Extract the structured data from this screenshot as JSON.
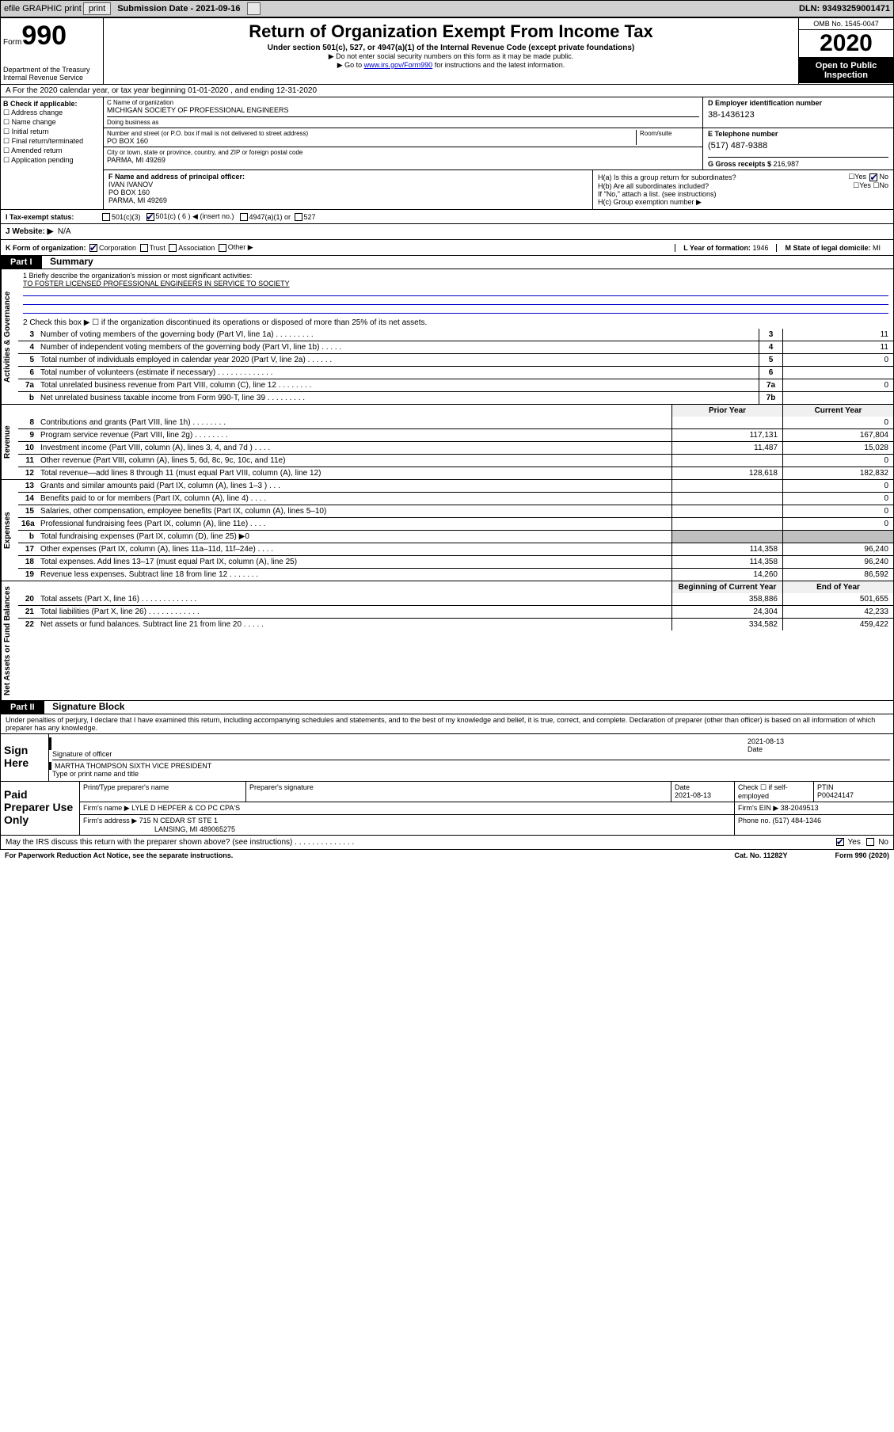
{
  "top": {
    "efile": "efile GRAPHIC print",
    "sub_date_label": "Submission Date - 2021-09-16",
    "dln": "DLN: 93493259001471"
  },
  "header": {
    "form_label": "Form",
    "form_num": "990",
    "dept": "Department of the Treasury\nInternal Revenue Service",
    "title": "Return of Organization Exempt From Income Tax",
    "subtitle": "Under section 501(c), 527, or 4947(a)(1) of the Internal Revenue Code (except private foundations)",
    "note1": "▶ Do not enter social security numbers on this form as it may be made public.",
    "note2_pre": "▶ Go to ",
    "note2_link": "www.irs.gov/Form990",
    "note2_post": " for instructions and the latest information.",
    "omb": "OMB No. 1545-0047",
    "year": "2020",
    "open": "Open to Public Inspection"
  },
  "row_a": "A For the 2020 calendar year, or tax year beginning 01-01-2020   , and ending 12-31-2020",
  "col_b": {
    "label": "B Check if applicable:",
    "items": [
      "Address change",
      "Name change",
      "Initial return",
      "Final return/terminated",
      "Amended return",
      "Application pending"
    ]
  },
  "col_c": {
    "name_label": "C Name of organization",
    "name": "MICHIGAN SOCIETY OF PROFESSIONAL ENGINEERS",
    "dba_label": "Doing business as",
    "street_label": "Number and street (or P.O. box if mail is not delivered to street address)",
    "room_label": "Room/suite",
    "street": "PO BOX 160",
    "city_label": "City or town, state or province, country, and ZIP or foreign postal code",
    "city": "PARMA, MI  49269"
  },
  "col_d": {
    "ein_label": "D Employer identification number",
    "ein": "38-1436123",
    "phone_label": "E Telephone number",
    "phone": "(517) 487-9388",
    "gross_label": "G Gross receipts $ ",
    "gross": "216,987"
  },
  "col_f": {
    "label": "F  Name and address of principal officer:",
    "name": "IVAN IVANOV",
    "addr1": "PO BOX 160",
    "addr2": "PARMA, MI  49269"
  },
  "col_h": {
    "ha_label": "H(a)  Is this a group return for subordinates?",
    "hb_label": "H(b)  Are all subordinates included?",
    "hb_note": "If \"No,\" attach a list. (see instructions)",
    "hc_label": "H(c)  Group exemption number ▶"
  },
  "row_i": {
    "label": "I    Tax-exempt status:",
    "opt1": "501(c)(3)",
    "opt2": "501(c) ( 6 ) ◀ (insert no.)",
    "opt3": "4947(a)(1) or",
    "opt4": "527"
  },
  "row_j": {
    "label": "J   Website: ▶",
    "val": "N/A"
  },
  "row_k": {
    "label": "K Form of organization:",
    "opts": [
      "Corporation",
      "Trust",
      "Association",
      "Other ▶"
    ],
    "l_label": "L Year of formation: ",
    "l_val": "1946",
    "m_label": "M State of legal domicile: ",
    "m_val": "MI"
  },
  "part1": {
    "hdr": "Part I",
    "title": "Summary",
    "line1_label": "1   Briefly describe the organization's mission or most significant activities:",
    "mission": "TO FOSTER LICENSED PROFESSIONAL ENGINEERS IN SERVICE TO SOCIETY",
    "line2": "2    Check this box ▶ ☐  if the organization discontinued its operations or disposed of more than 25% of its net assets.",
    "vtab_gov": "Activities & Governance",
    "vtab_rev": "Revenue",
    "vtab_exp": "Expenses",
    "vtab_net": "Net Assets or Fund Balances",
    "lines_gov": [
      {
        "n": "3",
        "t": "Number of voting members of the governing body (Part VI, line 1a)   .   .   .   .   .   .   .   .   .",
        "box": "3",
        "v": "11"
      },
      {
        "n": "4",
        "t": "Number of independent voting members of the governing body (Part VI, line 1b)   .   .   .   .   .",
        "box": "4",
        "v": "11"
      },
      {
        "n": "5",
        "t": "Total number of individuals employed in calendar year 2020 (Part V, line 2a)   .   .   .   .   .   .",
        "box": "5",
        "v": "0"
      },
      {
        "n": "6",
        "t": "Total number of volunteers (estimate if necessary)   .   .   .   .   .   .   .   .   .   .   .   .   .",
        "box": "6",
        "v": ""
      },
      {
        "n": "7a",
        "t": "Total unrelated business revenue from Part VIII, column (C), line 12   .   .   .   .   .   .   .   .",
        "box": "7a",
        "v": "0"
      },
      {
        "n": "b",
        "t": "Net unrelated business taxable income from Form 990-T, line 39   .   .   .   .   .   .   .   .   .",
        "box": "7b",
        "v": ""
      }
    ],
    "hdr_prior": "Prior Year",
    "hdr_curr": "Current Year",
    "lines_rev": [
      {
        "n": "8",
        "t": "Contributions and grants (Part VIII, line 1h)   .   .   .   .   .   .   .   .",
        "p": "",
        "c": "0"
      },
      {
        "n": "9",
        "t": "Program service revenue (Part VIII, line 2g)   .   .   .   .   .   .   .   .",
        "p": "117,131",
        "c": "167,804"
      },
      {
        "n": "10",
        "t": "Investment income (Part VIII, column (A), lines 3, 4, and 7d )   .   .   .   .",
        "p": "11,487",
        "c": "15,028"
      },
      {
        "n": "11",
        "t": "Other revenue (Part VIII, column (A), lines 5, 6d, 8c, 9c, 10c, and 11e)",
        "p": "",
        "c": "0"
      },
      {
        "n": "12",
        "t": "Total revenue—add lines 8 through 11 (must equal Part VIII, column (A), line 12)",
        "p": "128,618",
        "c": "182,832"
      }
    ],
    "lines_exp": [
      {
        "n": "13",
        "t": "Grants and similar amounts paid (Part IX, column (A), lines 1–3 )   .   .   .",
        "p": "",
        "c": "0"
      },
      {
        "n": "14",
        "t": "Benefits paid to or for members (Part IX, column (A), line 4)   .   .   .   .",
        "p": "",
        "c": "0"
      },
      {
        "n": "15",
        "t": "Salaries, other compensation, employee benefits (Part IX, column (A), lines 5–10)",
        "p": "",
        "c": "0"
      },
      {
        "n": "16a",
        "t": "Professional fundraising fees (Part IX, column (A), line 11e)   .   .   .   .",
        "p": "",
        "c": "0"
      },
      {
        "n": "b",
        "t": "Total fundraising expenses (Part IX, column (D), line 25) ▶0",
        "p": "SHADE",
        "c": "SHADE"
      },
      {
        "n": "17",
        "t": "Other expenses (Part IX, column (A), lines 11a–11d, 11f–24e)   .   .   .   .",
        "p": "114,358",
        "c": "96,240"
      },
      {
        "n": "18",
        "t": "Total expenses. Add lines 13–17 (must equal Part IX, column (A), line 25)",
        "p": "114,358",
        "c": "96,240"
      },
      {
        "n": "19",
        "t": "Revenue less expenses. Subtract line 18 from line 12   .   .   .   .   .   .   .",
        "p": "14,260",
        "c": "86,592"
      }
    ],
    "hdr_begin": "Beginning of Current Year",
    "hdr_end": "End of Year",
    "lines_net": [
      {
        "n": "20",
        "t": "Total assets (Part X, line 16)   .   .   .   .   .   .   .   .   .   .   .   .   .",
        "p": "358,886",
        "c": "501,655"
      },
      {
        "n": "21",
        "t": "Total liabilities (Part X, line 26)   .   .   .   .   .   .   .   .   .   .   .   .",
        "p": "24,304",
        "c": "42,233"
      },
      {
        "n": "22",
        "t": "Net assets or fund balances. Subtract line 21 from line 20   .   .   .   .   .",
        "p": "334,582",
        "c": "459,422"
      }
    ]
  },
  "part2": {
    "hdr": "Part II",
    "title": "Signature Block",
    "decl": "Under penalties of perjury, I declare that I have examined this return, including accompanying schedules and statements, and to the best of my knowledge and belief, it is true, correct, and complete. Declaration of preparer (other than officer) is based on all information of which preparer has any knowledge."
  },
  "sign": {
    "left": "Sign Here",
    "sig_label": "Signature of officer",
    "date": "2021-08-13",
    "date_label": "Date",
    "name": "MARTHA THOMPSON  SIXTH VICE PRESIDENT",
    "name_label": "Type or print name and title"
  },
  "prep": {
    "left": "Paid Preparer Use Only",
    "c1": "Print/Type preparer's name",
    "c2": "Preparer's signature",
    "c3": "Date",
    "c3v": "2021-08-13",
    "c4": "Check ☐ if self-employed",
    "c5": "PTIN",
    "c5v": "P00424147",
    "firm_label": "Firm's name      ▶ ",
    "firm": "LYLE D HEPFER & CO PC CPA'S",
    "ein_label": "Firm's EIN ▶ ",
    "ein": "38-2049513",
    "addr_label": "Firm's address ▶ ",
    "addr": "715 N CEDAR ST STE 1",
    "addr2": "LANSING, MI  489065275",
    "phone_label": "Phone no. ",
    "phone": "(517) 484-1346"
  },
  "bottom": {
    "q": "May the IRS discuss this return with the preparer shown above? (see instructions)   .   .   .   .   .   .   .   .   .   .   .   .   .   .",
    "yes": "Yes",
    "no": "No"
  },
  "footer": {
    "left": "For Paperwork Reduction Act Notice, see the separate instructions.",
    "mid": "Cat. No. 11282Y",
    "right": "Form 990 (2020)"
  }
}
